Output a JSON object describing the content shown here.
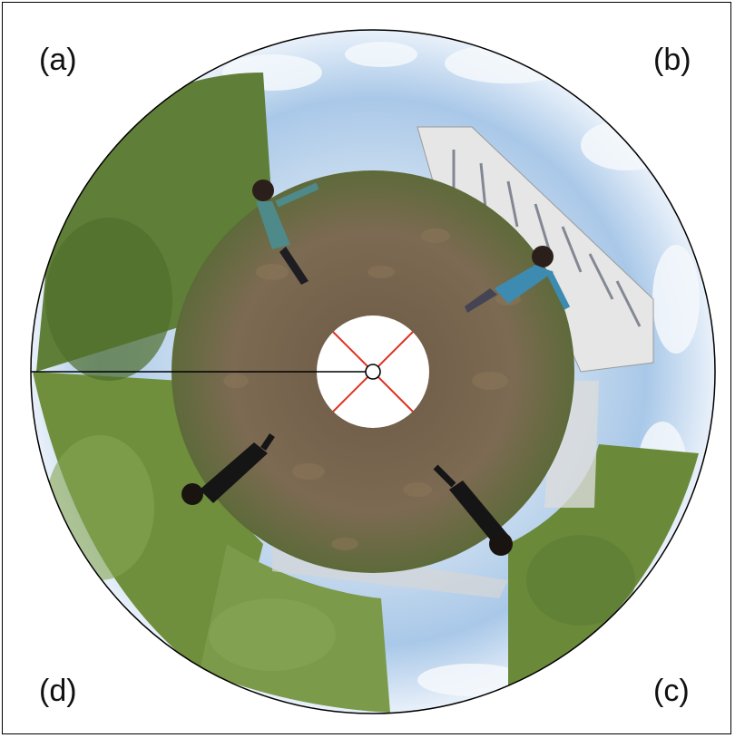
{
  "figure": {
    "panel_labels": {
      "a": "(a)",
      "b": "(b)",
      "c": "(c)",
      "d": "(d)"
    }
  },
  "colors": {
    "sky": "#9fc3e8",
    "sky_light": "#dbe9f6",
    "foliage": "#6f8f3c",
    "ground": "#7a6650",
    "building": "#e4e4e4",
    "marker_lines": "#e03020",
    "axis_line": "#000000"
  }
}
